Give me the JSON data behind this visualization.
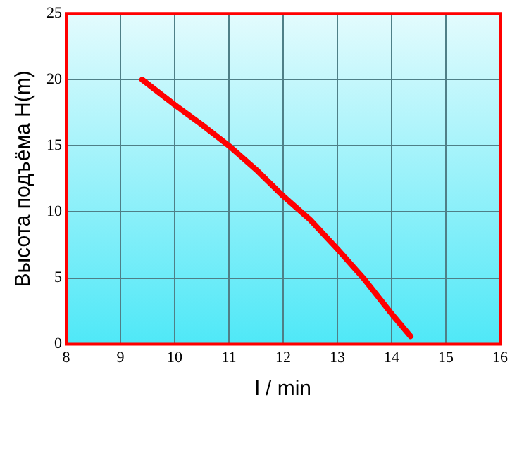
{
  "chart_data": {
    "type": "line",
    "xlabel": "l / min",
    "ylabel": "Высота подъёма H(m)",
    "x": [
      9.4,
      10,
      10.5,
      11,
      11.5,
      12,
      12.5,
      13,
      13.5,
      14,
      14.35
    ],
    "series": [
      {
        "color": "#ff0000",
        "values": [
          20,
          18.1,
          16.6,
          15,
          13.2,
          11.2,
          9.4,
          7.2,
          4.9,
          2.3,
          0.6
        ]
      }
    ],
    "xlim": [
      8,
      16
    ],
    "xticks": [
      8,
      9,
      10,
      11,
      12,
      13,
      14,
      15,
      16
    ],
    "ylim": [
      0,
      25
    ],
    "yticks": [
      0,
      5,
      10,
      15,
      20,
      25
    ],
    "grid": true,
    "legend": false,
    "marker": "none",
    "line_style": "solid"
  }
}
